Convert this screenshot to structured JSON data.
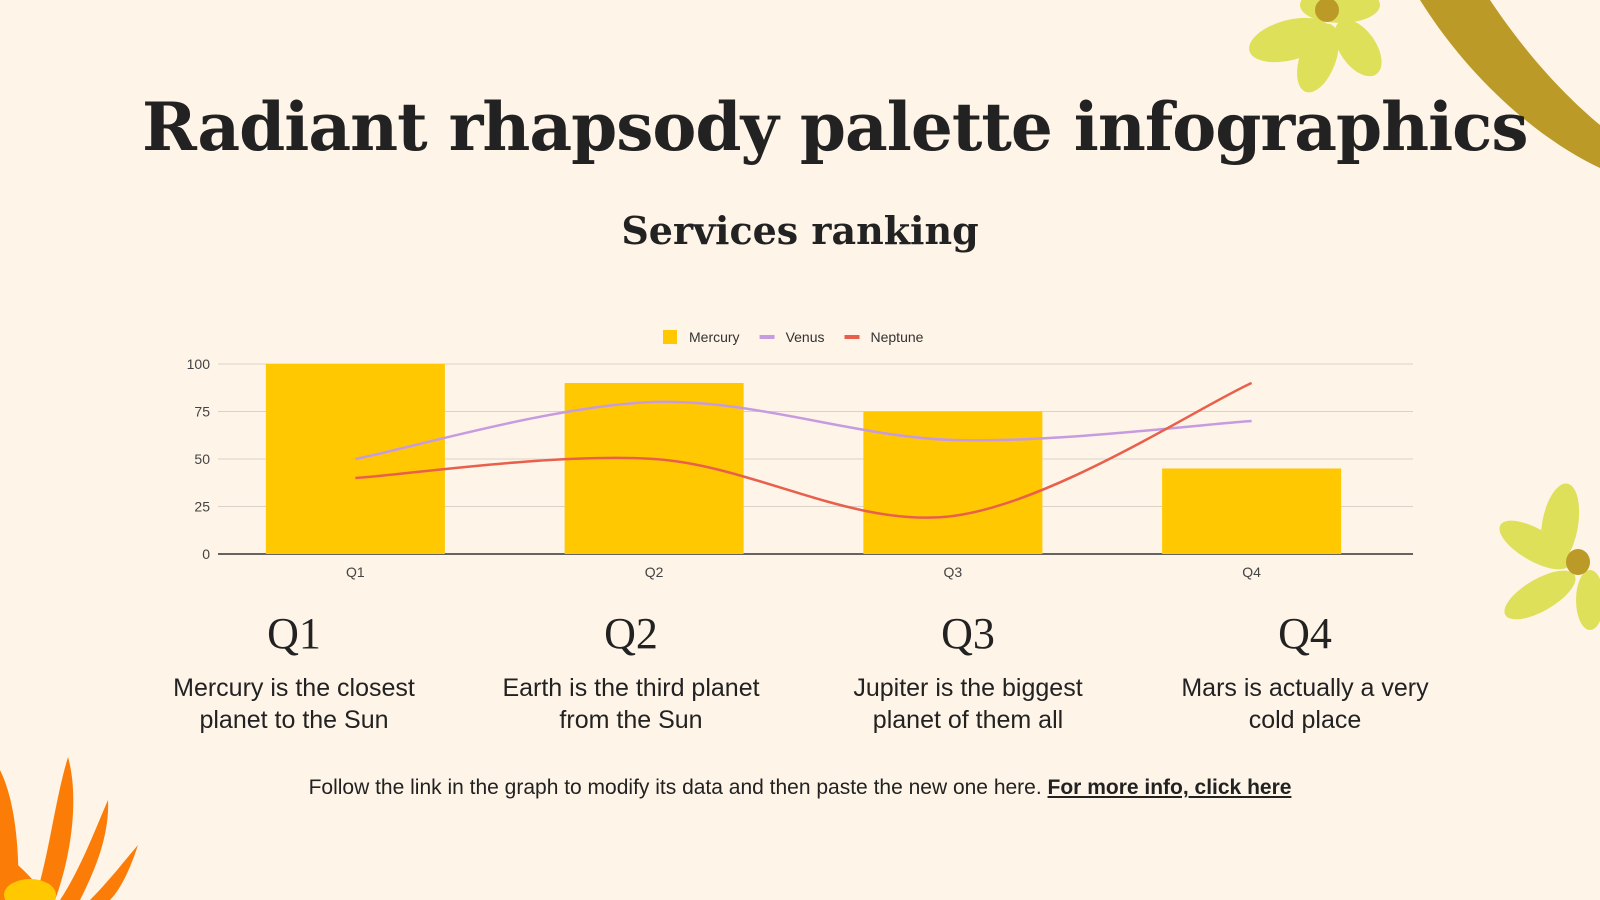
{
  "header": {
    "title": "Radiant rhapsody palette infographics",
    "subtitle": "Services ranking"
  },
  "chart_data": {
    "type": "bar",
    "categories": [
      "Q1",
      "Q2",
      "Q3",
      "Q4"
    ],
    "series": [
      {
        "name": "Mercury",
        "type": "bar",
        "color": "#ffc800",
        "values": [
          100,
          90,
          75,
          45
        ]
      },
      {
        "name": "Venus",
        "type": "line",
        "color": "#c79be0",
        "values": [
          50,
          80,
          60,
          70
        ]
      },
      {
        "name": "Neptune",
        "type": "line",
        "color": "#e8604c",
        "values": [
          40,
          50,
          20,
          90
        ]
      }
    ],
    "yticks": [
      "0",
      "25",
      "50",
      "75",
      "100"
    ],
    "ylim": [
      0,
      100
    ],
    "grid": true,
    "legend": "top"
  },
  "quarters": [
    {
      "label": "Q1",
      "text": "Mercury is the closest planet to the Sun"
    },
    {
      "label": "Q2",
      "text": "Earth is the third planet from the Sun"
    },
    {
      "label": "Q3",
      "text": "Jupiter is the biggest planet of them all"
    },
    {
      "label": "Q4",
      "text": "Mars is actually a very cold place"
    }
  ],
  "footer": {
    "text": "Follow the link in the graph to modify its data and then paste the new one here.",
    "link": "For more info, click here"
  },
  "colors": {
    "background": "#fef4e8",
    "flower_yellow": "#dfe05a",
    "leaf_olive": "#bc9a27",
    "orange": "#fb7d08"
  }
}
